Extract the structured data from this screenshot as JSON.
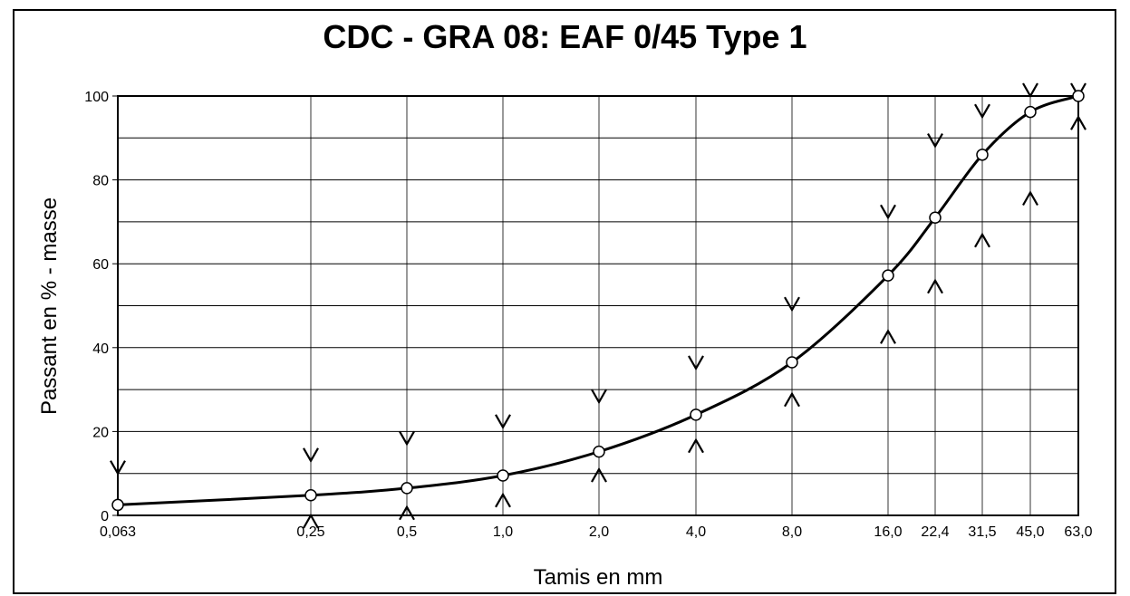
{
  "chart_data": {
    "type": "line",
    "title": "CDC - GRA 08:  EAF 0/45 Type 1",
    "xlabel": "Tamis en mm",
    "ylabel": "Passant en % - masse",
    "ylim": [
      0,
      100
    ],
    "yticks": [
      "0",
      "20",
      "40",
      "60",
      "80",
      "100"
    ],
    "grid": true,
    "sieves": [
      "0,063",
      "0,25",
      "0,5",
      "1,0",
      "2,0",
      "4,0",
      "8,0",
      "16,0",
      "22,4",
      "31,5",
      "45,0",
      "63,0"
    ],
    "x": [
      0.063,
      0.25,
      0.5,
      1.0,
      2.0,
      4.0,
      8.0,
      16.0,
      22.4,
      31.5,
      45.0,
      63.0
    ],
    "series": [
      {
        "values": [
          2.5,
          4.8,
          6.5,
          9.5,
          15.2,
          24.0,
          36.5,
          57.2,
          71.0,
          86.0,
          96.2,
          100
        ]
      }
    ],
    "upper_limits": [
      {
        "x": 0.063,
        "y": 10
      },
      {
        "x": 0.25,
        "y": 13
      },
      {
        "x": 0.5,
        "y": 17
      },
      {
        "x": 1.0,
        "y": 21
      },
      {
        "x": 2.0,
        "y": 27
      },
      {
        "x": 4.0,
        "y": 35
      },
      {
        "x": 8.0,
        "y": 49
      },
      {
        "x": 16.0,
        "y": 71
      },
      {
        "x": 22.4,
        "y": 88
      },
      {
        "x": 31.5,
        "y": 95
      },
      {
        "x": 45.0,
        "y": 100
      },
      {
        "x": 63.0,
        "y": 100
      }
    ],
    "lower_limits": [
      {
        "x": 0.25,
        "y": 0
      },
      {
        "x": 0.5,
        "y": 2
      },
      {
        "x": 1.0,
        "y": 5
      },
      {
        "x": 2.0,
        "y": 11
      },
      {
        "x": 4.0,
        "y": 18
      },
      {
        "x": 8.0,
        "y": 29
      },
      {
        "x": 16.0,
        "y": 44
      },
      {
        "x": 22.4,
        "y": 56
      },
      {
        "x": 31.5,
        "y": 67
      },
      {
        "x": 45.0,
        "y": 77
      },
      {
        "x": 63.0,
        "y": 95
      }
    ]
  }
}
